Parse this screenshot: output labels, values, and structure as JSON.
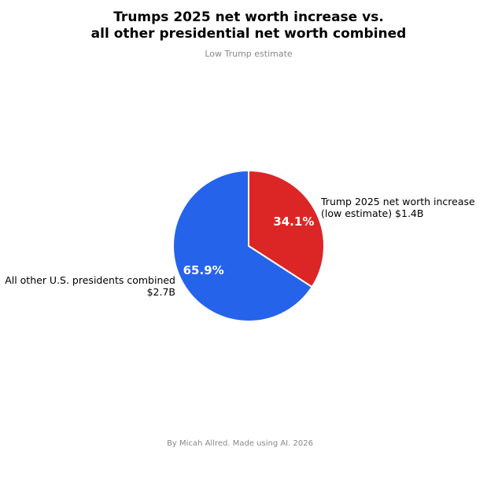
{
  "chart_data": {
    "type": "pie",
    "title": "Trumps 2025 net worth increase vs.\nall other presidential net worth combined",
    "subtitle": "Low Trump estimate",
    "slices": [
      {
        "label": "Trump 2025 net worth increase\n(low estimate) $1.4B",
        "value": 1.4,
        "percent_label": "34.1%",
        "color": "#DC2626"
      },
      {
        "label": "All other U.S. presidents combined\n$2.7B",
        "value": 2.7,
        "percent_label": "65.9%",
        "color": "#2563EB"
      }
    ],
    "start_angle": 90,
    "direction": "clockwise",
    "footer": "By Micah Allred. Made using AI. 2026"
  }
}
